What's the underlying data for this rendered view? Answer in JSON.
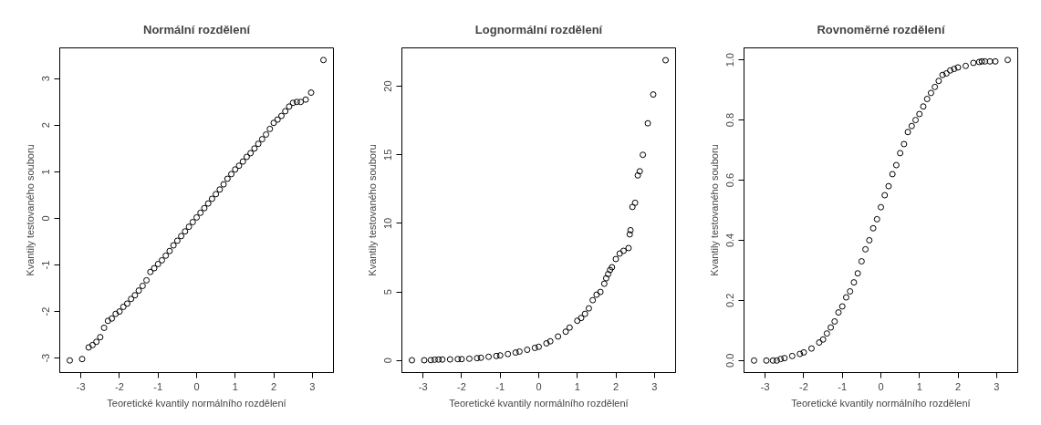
{
  "chart_data": [
    {
      "type": "scatter",
      "title": "Normální rozdělení",
      "xlabel": "Teoretické kvantily normálního rozdělení",
      "ylabel": "Kvantily testovaného souboru",
      "marker": "circle",
      "grid": false,
      "xlim": [
        -3.55,
        3.55
      ],
      "ylim": [
        -3.31,
        3.66
      ],
      "xticks": [
        -3,
        -2,
        -1,
        0,
        1,
        2,
        3
      ],
      "yticks": [
        -3,
        -2,
        -1,
        0,
        1,
        2,
        3
      ],
      "series": [
        {
          "color": "#000000",
          "x": [
            -3.29,
            -2.97,
            -2.8,
            -2.7,
            -2.6,
            -2.5,
            -2.4,
            -2.3,
            -2.2,
            -2.1,
            -2.0,
            -1.9,
            -1.8,
            -1.7,
            -1.6,
            -1.5,
            -1.4,
            -1.3,
            -1.2,
            -1.1,
            -1.0,
            -0.9,
            -0.8,
            -0.7,
            -0.6,
            -0.5,
            -0.4,
            -0.3,
            -0.2,
            -0.1,
            0.0,
            0.1,
            0.2,
            0.3,
            0.4,
            0.5,
            0.6,
            0.7,
            0.8,
            0.9,
            1.0,
            1.1,
            1.2,
            1.3,
            1.4,
            1.5,
            1.6,
            1.7,
            1.8,
            1.9,
            2.0,
            2.1,
            2.2,
            2.3,
            2.4,
            2.5,
            2.6,
            2.7,
            2.83,
            2.97,
            3.29
          ],
          "values": [
            -3.05,
            -3.02,
            -2.77,
            -2.72,
            -2.65,
            -2.55,
            -2.35,
            -2.2,
            -2.15,
            -2.05,
            -2.0,
            -1.9,
            -1.83,
            -1.73,
            -1.65,
            -1.55,
            -1.45,
            -1.33,
            -1.15,
            -1.07,
            -0.98,
            -0.9,
            -0.8,
            -0.7,
            -0.58,
            -0.48,
            -0.38,
            -0.28,
            -0.18,
            -0.08,
            0.02,
            0.12,
            0.22,
            0.32,
            0.42,
            0.52,
            0.62,
            0.73,
            0.85,
            0.95,
            1.05,
            1.13,
            1.22,
            1.32,
            1.4,
            1.5,
            1.6,
            1.7,
            1.8,
            1.92,
            2.05,
            2.12,
            2.2,
            2.3,
            2.4,
            2.48,
            2.5,
            2.5,
            2.55,
            2.7,
            3.4
          ]
        }
      ]
    },
    {
      "type": "scatter",
      "title": "Lognormální rozdělení",
      "xlabel": "Teoretické kvantily normálního rozdělení",
      "ylabel": "Kvantily testovaného souboru",
      "marker": "circle",
      "grid": false,
      "xlim": [
        -3.55,
        3.55
      ],
      "ylim": [
        -0.88,
        22.8
      ],
      "xticks": [
        -3,
        -2,
        -1,
        0,
        1,
        2,
        3
      ],
      "yticks": [
        0,
        5,
        10,
        15,
        20
      ],
      "series": [
        {
          "color": "#000000",
          "x": [
            -3.29,
            -2.97,
            -2.8,
            -2.7,
            -2.6,
            -2.5,
            -2.3,
            -2.1,
            -2.0,
            -1.8,
            -1.6,
            -1.5,
            -1.3,
            -1.1,
            -1.0,
            -0.8,
            -0.6,
            -0.5,
            -0.3,
            -0.1,
            0.0,
            0.2,
            0.3,
            0.5,
            0.7,
            0.8,
            1.0,
            1.1,
            1.2,
            1.3,
            1.4,
            1.5,
            1.6,
            1.7,
            1.75,
            1.8,
            1.85,
            1.9,
            2.0,
            2.1,
            2.2,
            2.33,
            2.36,
            2.38,
            2.43,
            2.5,
            2.57,
            2.62,
            2.7,
            2.83,
            2.97,
            3.29
          ],
          "values": [
            0.02,
            0.02,
            0.03,
            0.06,
            0.07,
            0.07,
            0.08,
            0.1,
            0.1,
            0.13,
            0.17,
            0.2,
            0.27,
            0.33,
            0.37,
            0.47,
            0.58,
            0.65,
            0.78,
            0.92,
            1.0,
            1.25,
            1.4,
            1.75,
            2.1,
            2.4,
            2.9,
            3.1,
            3.4,
            3.8,
            4.4,
            4.8,
            5.0,
            5.6,
            6.0,
            6.3,
            6.6,
            6.8,
            7.4,
            7.8,
            8.0,
            8.2,
            9.2,
            9.5,
            11.2,
            11.5,
            13.5,
            13.8,
            15.0,
            17.3,
            19.4,
            21.9
          ]
        }
      ]
    },
    {
      "type": "scatter",
      "title": "Rovnoměrné rozdělení",
      "xlabel": "Teoretické kvantily normálního rozdělení",
      "ylabel": "Kvantily testovaného souboru",
      "marker": "circle",
      "grid": false,
      "xlim": [
        -3.55,
        3.55
      ],
      "ylim": [
        -0.04,
        1.04
      ],
      "xticks": [
        -3,
        -2,
        -1,
        0,
        1,
        2,
        3
      ],
      "yticks": [
        {
          "value": 0,
          "label": "0.0"
        },
        {
          "value": 0.2,
          "label": "0.2"
        },
        {
          "value": 0.4,
          "label": "0.4"
        },
        {
          "value": 0.6,
          "label": "0.6"
        },
        {
          "value": 0.8,
          "label": "0.8"
        },
        {
          "value": 1,
          "label": "1.0"
        }
      ],
      "series": [
        {
          "color": "#000000",
          "x": [
            -3.29,
            -2.97,
            -2.8,
            -2.7,
            -2.6,
            -2.5,
            -2.3,
            -2.1,
            -2.0,
            -1.8,
            -1.6,
            -1.5,
            -1.4,
            -1.3,
            -1.2,
            -1.1,
            -1.0,
            -0.9,
            -0.8,
            -0.7,
            -0.6,
            -0.5,
            -0.4,
            -0.3,
            -0.2,
            -0.1,
            0.0,
            0.1,
            0.2,
            0.3,
            0.4,
            0.5,
            0.6,
            0.7,
            0.8,
            0.9,
            1.0,
            1.1,
            1.2,
            1.3,
            1.4,
            1.5,
            1.6,
            1.7,
            1.8,
            1.9,
            2.0,
            2.2,
            2.4,
            2.55,
            2.62,
            2.7,
            2.83,
            2.97,
            3.29
          ],
          "values": [
            0.0,
            0.0,
            0.0,
            0.0,
            0.005,
            0.008,
            0.015,
            0.022,
            0.027,
            0.04,
            0.06,
            0.07,
            0.09,
            0.11,
            0.13,
            0.16,
            0.18,
            0.21,
            0.23,
            0.26,
            0.29,
            0.33,
            0.37,
            0.4,
            0.44,
            0.47,
            0.51,
            0.55,
            0.58,
            0.62,
            0.65,
            0.69,
            0.72,
            0.76,
            0.78,
            0.8,
            0.82,
            0.845,
            0.87,
            0.89,
            0.91,
            0.93,
            0.95,
            0.955,
            0.965,
            0.97,
            0.975,
            0.98,
            0.99,
            0.993,
            0.995,
            0.995,
            0.995,
            0.995,
            1.0
          ]
        }
      ]
    }
  ]
}
